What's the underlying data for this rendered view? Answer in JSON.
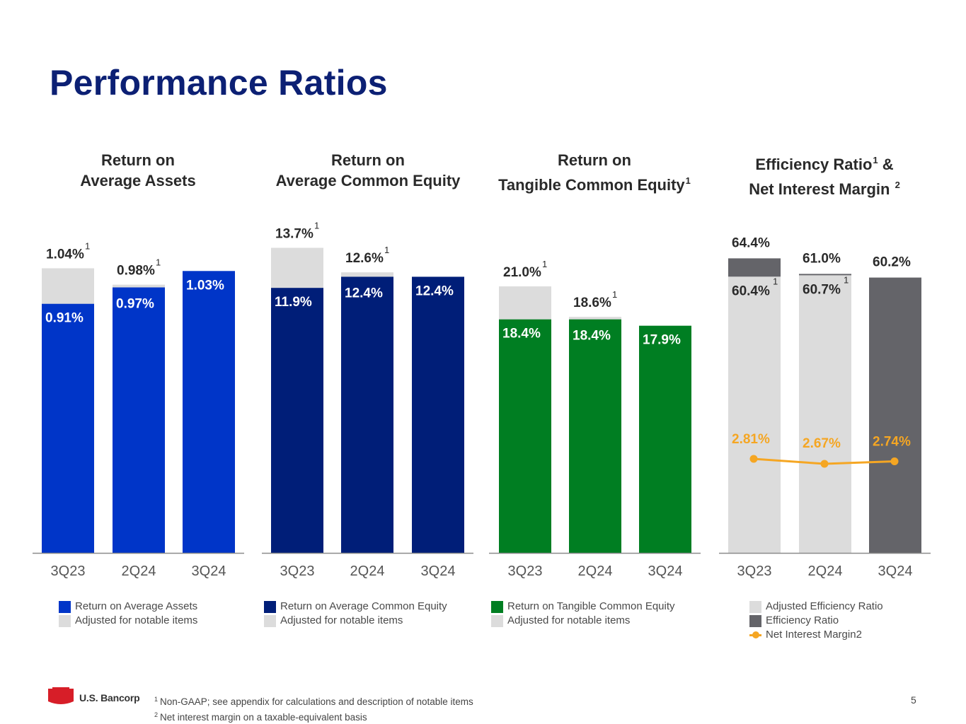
{
  "page": {
    "title": "Performance Ratios",
    "page_number": "5"
  },
  "footnotes": [
    {
      "mark": "1",
      "text": "Non-GAAP; see appendix for calculations and description of notable items"
    },
    {
      "mark": "2",
      "text": "Net interest margin on a taxable-equivalent basis"
    }
  ],
  "logo": {
    "text": "U.S. Bancorp",
    "color": "#d71e28"
  },
  "chart_data": [
    {
      "type": "bar",
      "title_line1": "Return on",
      "title_line2": "Average Assets",
      "title_sup": "",
      "categories": [
        "3Q23",
        "2Q24",
        "3Q24"
      ],
      "series": [
        {
          "name": "Return on Average Assets",
          "color": "#0035c8",
          "values": [
            0.91,
            0.97,
            1.03
          ],
          "labels": [
            "0.91%",
            "0.97%",
            "1.03%"
          ]
        },
        {
          "name": "Adjusted for notable items",
          "color": "#dcdcdc",
          "values": [
            1.04,
            0.98,
            null
          ],
          "labels": [
            "1.04%",
            "0.98%",
            null
          ]
        }
      ],
      "ylim": [
        0,
        1.24
      ]
    },
    {
      "type": "bar",
      "title_line1": "Return on",
      "title_line2": "Average Common Equity",
      "title_sup": "",
      "categories": [
        "3Q23",
        "2Q24",
        "3Q24"
      ],
      "series": [
        {
          "name": "Return on Average Common Equity",
          "color": "#001e78",
          "values": [
            11.9,
            12.4,
            12.4
          ],
          "labels": [
            "11.9%",
            "12.4%",
            "12.4%"
          ]
        },
        {
          "name": "Adjusted for notable items",
          "color": "#dcdcdc",
          "values": [
            13.7,
            12.6,
            null
          ],
          "labels": [
            "13.7%",
            "12.6%",
            null
          ]
        }
      ],
      "ylim": [
        0,
        15.24
      ]
    },
    {
      "type": "bar",
      "title_line1": "Return on",
      "title_line2": "Tangible Common Equity",
      "title_sup": "1",
      "categories": [
        "3Q23",
        "2Q24",
        "3Q24"
      ],
      "series": [
        {
          "name": "Return on Tangible Common Equity",
          "color": "#007e22",
          "values": [
            18.4,
            18.4,
            17.9
          ],
          "labels": [
            "18.4%",
            "18.4%",
            "17.9%"
          ]
        },
        {
          "name": "Adjusted for notable items",
          "color": "#dcdcdc",
          "values": [
            21.0,
            18.6,
            null
          ],
          "labels": [
            "21.0%",
            "18.6%",
            null
          ]
        }
      ],
      "ylim": [
        0,
        26.74
      ]
    },
    {
      "type": "bar",
      "title_line1": "Efficiency Ratio",
      "title_line1_sup": "1",
      "title_line1_suffix": "&",
      "title_line2": "Net Interest Margin",
      "title_sup": "2",
      "categories": [
        "3Q23",
        "2Q24",
        "3Q24"
      ],
      "series": [
        {
          "name": "Adjusted Efficiency Ratio",
          "color": "#dcdcdc",
          "values": [
            60.4,
            60.7,
            null
          ],
          "labels": [
            "60.4%",
            "60.7%",
            null
          ]
        },
        {
          "name": "Efficiency Ratio",
          "color": "#646469",
          "values": [
            64.4,
            61.0,
            60.2
          ],
          "labels": [
            "64.4%",
            "61.0%",
            "60.2%"
          ]
        },
        {
          "name": "Net Interest Margin",
          "name_sup": "2",
          "color": "#f5a623",
          "type": "line",
          "values": [
            2.81,
            2.67,
            2.74
          ],
          "labels": [
            "2.81%",
            "2.67%",
            "2.74%"
          ]
        }
      ],
      "ylim": [
        0,
        74.2
      ]
    }
  ]
}
